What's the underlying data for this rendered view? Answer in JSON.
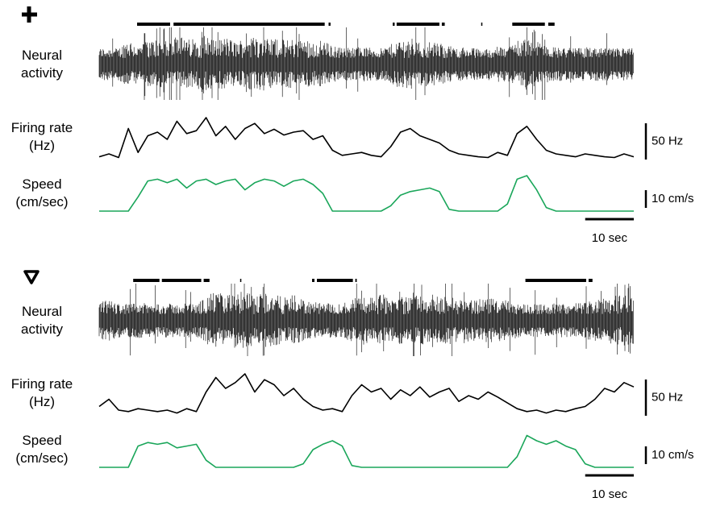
{
  "chart_data": [
    {
      "type": "line",
      "time_range": [
        0,
        110
      ],
      "neural_label": "Neural activity",
      "rate_label": "Firing rate (Hz)",
      "speed_label": "Speed (cm/sec)",
      "running_epochs": [
        [
          7.8,
          14.6
        ],
        [
          15.3,
          46.4
        ],
        [
          47.2,
          47.6
        ],
        [
          60.4,
          60.8
        ],
        [
          61.2,
          70
        ],
        [
          70.5,
          71.1
        ],
        [
          78.6,
          78.8
        ],
        [
          85,
          91.7
        ],
        [
          92.4,
          93.7
        ]
      ],
      "x": [
        0,
        2,
        4,
        6,
        8,
        10,
        12,
        14,
        16,
        18,
        20,
        22,
        24,
        26,
        28,
        30,
        32,
        34,
        36,
        38,
        40,
        42,
        44,
        46,
        48,
        50,
        52,
        54,
        56,
        58,
        60,
        62,
        64,
        66,
        68,
        70,
        72,
        74,
        76,
        78,
        80,
        82,
        84,
        86,
        88,
        90,
        92,
        94,
        96,
        98,
        100,
        102,
        104,
        106,
        108,
        110
      ],
      "firing_rate": {
        "color": "#000000",
        "values": [
          6,
          10,
          5,
          45,
          12,
          35,
          40,
          30,
          55,
          38,
          42,
          60,
          35,
          48,
          30,
          45,
          52,
          38,
          44,
          36,
          40,
          42,
          30,
          35,
          15,
          8,
          10,
          12,
          8,
          6,
          20,
          40,
          45,
          35,
          30,
          25,
          15,
          10,
          8,
          6,
          5,
          12,
          8,
          38,
          48,
          30,
          15,
          10,
          8,
          6,
          10,
          8,
          6,
          5,
          10,
          6
        ]
      },
      "speed": {
        "color": "#1aa65a",
        "values": [
          0,
          0,
          0,
          0,
          8,
          17,
          18,
          16,
          18,
          13,
          17,
          18,
          15,
          17,
          18,
          12,
          16,
          18,
          17,
          14,
          17,
          18,
          15,
          10,
          0,
          0,
          0,
          0,
          0,
          0,
          3,
          9,
          11,
          12,
          13,
          11,
          1,
          0,
          0,
          0,
          0,
          0,
          4,
          18,
          20,
          12,
          2,
          0,
          0,
          0,
          0,
          0,
          0,
          0,
          0,
          0
        ]
      },
      "rate_scale": {
        "value": 50,
        "label": "50 Hz"
      },
      "speed_scale": {
        "value": 10,
        "label": "10 cm/s"
      },
      "time_scale": {
        "value": 10,
        "label": "10 sec"
      }
    },
    {
      "type": "line",
      "time_range": [
        0,
        110
      ],
      "neural_label": "Neural activity",
      "rate_label": "Firing rate (Hz)",
      "speed_label": "Speed (cm/sec)",
      "running_epochs": [
        [
          7,
          12.4
        ],
        [
          12.9,
          21
        ],
        [
          21.5,
          22.7
        ],
        [
          29,
          29.2
        ],
        [
          43.8,
          44.3
        ],
        [
          44.8,
          52.2
        ],
        [
          52.7,
          53
        ],
        [
          87.7,
          100.2
        ],
        [
          100.7,
          101.5
        ]
      ],
      "x": [
        0,
        2,
        4,
        6,
        8,
        10,
        12,
        14,
        16,
        18,
        20,
        22,
        24,
        26,
        28,
        30,
        32,
        34,
        36,
        38,
        40,
        42,
        44,
        46,
        48,
        50,
        52,
        54,
        56,
        58,
        60,
        62,
        64,
        66,
        68,
        70,
        72,
        74,
        76,
        78,
        80,
        82,
        84,
        86,
        88,
        90,
        92,
        94,
        96,
        98,
        100,
        102,
        104,
        106,
        108,
        110
      ],
      "firing_rate": {
        "color": "#000000",
        "values": [
          15,
          25,
          10,
          8,
          12,
          10,
          8,
          10,
          6,
          12,
          8,
          35,
          55,
          40,
          48,
          60,
          35,
          52,
          45,
          30,
          40,
          25,
          15,
          10,
          12,
          8,
          30,
          45,
          35,
          40,
          25,
          38,
          30,
          42,
          28,
          35,
          40,
          22,
          30,
          25,
          35,
          28,
          20,
          12,
          8,
          10,
          6,
          10,
          8,
          12,
          15,
          25,
          40,
          35,
          48,
          42
        ]
      },
      "speed": {
        "color": "#1aa65a",
        "values": [
          0,
          0,
          0,
          0,
          12,
          14,
          13,
          14,
          11,
          12,
          13,
          4,
          0,
          0,
          0,
          0,
          0,
          0,
          0,
          0,
          0,
          2,
          10,
          13,
          15,
          12,
          1,
          0,
          0,
          0,
          0,
          0,
          0,
          0,
          0,
          0,
          0,
          0,
          0,
          0,
          0,
          0,
          0,
          6,
          18,
          15,
          13,
          15,
          12,
          10,
          2,
          0,
          0,
          0,
          0,
          0
        ]
      },
      "rate_scale": {
        "value": 50,
        "label": "50 Hz"
      },
      "speed_scale": {
        "value": 10,
        "label": "10 cm/s"
      },
      "time_scale": {
        "value": 10,
        "label": "10 sec"
      }
    }
  ]
}
